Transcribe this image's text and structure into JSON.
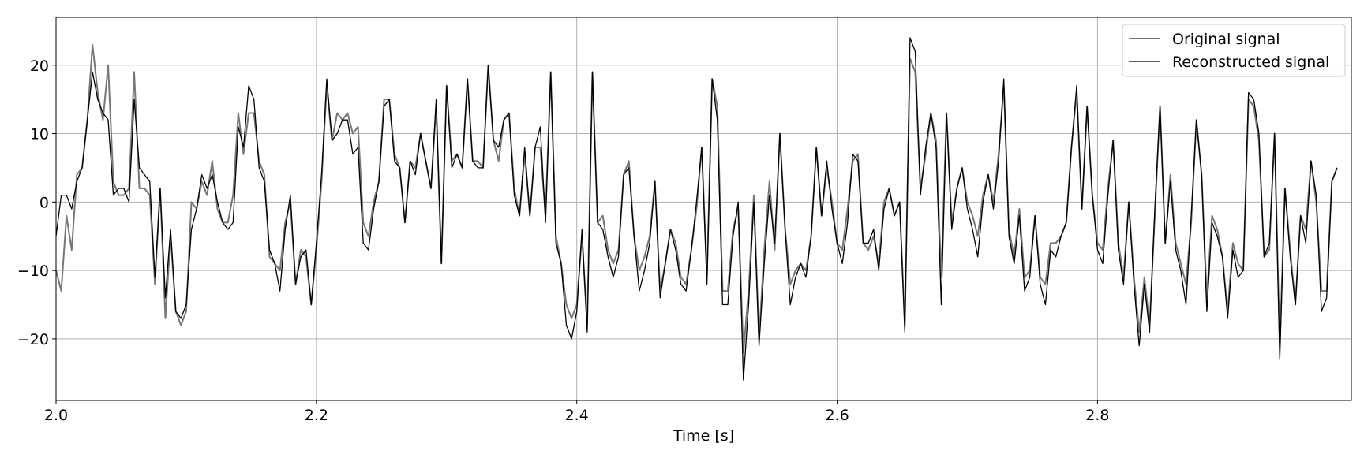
{
  "chart_data": {
    "type": "line",
    "title": "",
    "xlabel": "Time [s]",
    "ylabel": "",
    "xlim": [
      2.0,
      2.995
    ],
    "ylim": [
      -29,
      27
    ],
    "grid": true,
    "legend_position": "top-right",
    "x_ticks": [
      2.0,
      2.2,
      2.4,
      2.6,
      2.8
    ],
    "x_tick_labels": [
      "2.0",
      "2.2",
      "2.4",
      "2.6",
      "2.8"
    ],
    "y_ticks": [
      -20,
      -10,
      0,
      10,
      20
    ],
    "y_tick_labels": [
      "−20",
      "−10",
      "0",
      "10",
      "20"
    ],
    "x_start": 2.0,
    "x_step": 0.004,
    "series": [
      {
        "name": "Original signal",
        "color": "#777777",
        "values": [
          -10,
          -13,
          -2,
          -7,
          4,
          5,
          12,
          23,
          16,
          12,
          20,
          3,
          1,
          1,
          2,
          19,
          2,
          2,
          1,
          -12,
          2,
          -17,
          -5,
          -16,
          -18,
          -16,
          0,
          -1,
          3,
          1,
          6,
          -1,
          -3,
          -3,
          1,
          13,
          7,
          13,
          13,
          6,
          4,
          -8,
          -9,
          -10,
          -3,
          0,
          -12,
          -7,
          -8,
          -15,
          -7,
          3,
          17,
          9,
          13,
          12,
          13,
          10,
          11,
          -3,
          -5,
          0,
          3,
          15,
          15,
          7,
          5,
          -3,
          6,
          5,
          10,
          6,
          2,
          14,
          -9,
          17,
          6,
          7,
          5,
          18,
          6,
          6,
          5,
          20,
          9,
          6,
          12,
          13,
          2,
          -2,
          7,
          -2,
          8,
          8,
          -2,
          19,
          -5,
          -9,
          -15,
          -17,
          -15,
          -5,
          -18,
          19,
          -3,
          -2,
          -7,
          -9,
          -7,
          4,
          6,
          -5,
          -10,
          -8,
          -5,
          3,
          -13,
          -9,
          -4,
          -6,
          -11,
          -12,
          -7,
          -1,
          8,
          -11,
          18,
          14,
          -13,
          -13,
          -4,
          -1,
          -22,
          -13,
          1,
          -20,
          -7,
          3,
          -7,
          10,
          -4,
          -12,
          -10,
          -9,
          -10,
          -5,
          8,
          -2,
          5,
          0,
          -6,
          -7,
          -1,
          6,
          7,
          -6,
          -7,
          -5,
          -9,
          0,
          2,
          -2,
          0,
          -18,
          21,
          19,
          2,
          7,
          13,
          9,
          -11,
          13,
          -3,
          2,
          5,
          0,
          -2,
          -5,
          1,
          4,
          0,
          7,
          17,
          -4,
          -8,
          -1,
          -11,
          -10,
          -2,
          -11,
          -12,
          -6,
          -6,
          -5,
          -3,
          8,
          16,
          -1,
          14,
          1,
          -6,
          -7,
          2,
          9,
          -6,
          -11,
          0,
          -11,
          -19,
          -11,
          -18,
          -2,
          14,
          -6,
          4,
          -6,
          -9,
          -12,
          -3,
          12,
          4,
          -14,
          -2,
          -4,
          -8,
          -16,
          -6,
          -9,
          -10,
          15,
          14,
          9,
          -8,
          -7,
          10,
          -21,
          2,
          -7,
          -15,
          -2,
          -4,
          6,
          0,
          -13,
          -13,
          3,
          5
        ]
      },
      {
        "name": "Reconstructed signal",
        "color": "#000000",
        "values": [
          -5,
          1,
          1,
          -1,
          3,
          5,
          12,
          19,
          15,
          13,
          12,
          1,
          2,
          2,
          0,
          15,
          5,
          4,
          3,
          -11,
          2,
          -14,
          -4,
          -16,
          -17,
          -15,
          -4,
          -1,
          4,
          2,
          4,
          0,
          -3,
          -4,
          -3,
          11,
          8,
          17,
          15,
          5,
          3,
          -7,
          -9,
          -13,
          -4,
          1,
          -12,
          -8,
          -7,
          -15,
          -6,
          4,
          18,
          9,
          10,
          12,
          12,
          7,
          8,
          -6,
          -7,
          -1,
          3,
          14,
          15,
          6,
          5,
          -3,
          6,
          4,
          10,
          6,
          2,
          15,
          -9,
          17,
          5,
          7,
          5,
          18,
          6,
          5,
          5,
          20,
          9,
          8,
          12,
          13,
          1,
          -2,
          8,
          -2,
          8,
          11,
          -3,
          19,
          -6,
          -9,
          -18,
          -20,
          -16,
          -4,
          -19,
          19,
          -3,
          -4,
          -8,
          -11,
          -8,
          4,
          5,
          -5,
          -13,
          -10,
          -6,
          3,
          -14,
          -9,
          -4,
          -7,
          -12,
          -13,
          -7,
          0,
          8,
          -12,
          18,
          12,
          -15,
          -15,
          -5,
          0,
          -26,
          -15,
          0,
          -21,
          -9,
          1,
          -6,
          10,
          -4,
          -15,
          -11,
          -9,
          -11,
          -5,
          8,
          -2,
          6,
          -1,
          -6,
          -9,
          -3,
          7,
          6,
          -6,
          -6,
          -4,
          -10,
          -1,
          2,
          -2,
          0,
          -19,
          24,
          22,
          1,
          8,
          13,
          8,
          -15,
          13,
          -4,
          2,
          5,
          -1,
          -4,
          -8,
          0,
          4,
          -1,
          6,
          18,
          -5,
          -9,
          -2,
          -13,
          -11,
          -2,
          -12,
          -15,
          -7,
          -8,
          -5,
          -3,
          8,
          17,
          -1,
          14,
          1,
          -7,
          -9,
          1,
          9,
          -7,
          -12,
          0,
          -12,
          -21,
          -12,
          -19,
          -1,
          14,
          -6,
          3,
          -7,
          -10,
          -15,
          -2,
          12,
          4,
          -16,
          -3,
          -5,
          -8,
          -17,
          -7,
          -11,
          -10,
          16,
          15,
          10,
          -8,
          -6,
          10,
          -23,
          2,
          -8,
          -15,
          -2,
          -6,
          6,
          1,
          -16,
          -14,
          3,
          5
        ]
      }
    ]
  }
}
